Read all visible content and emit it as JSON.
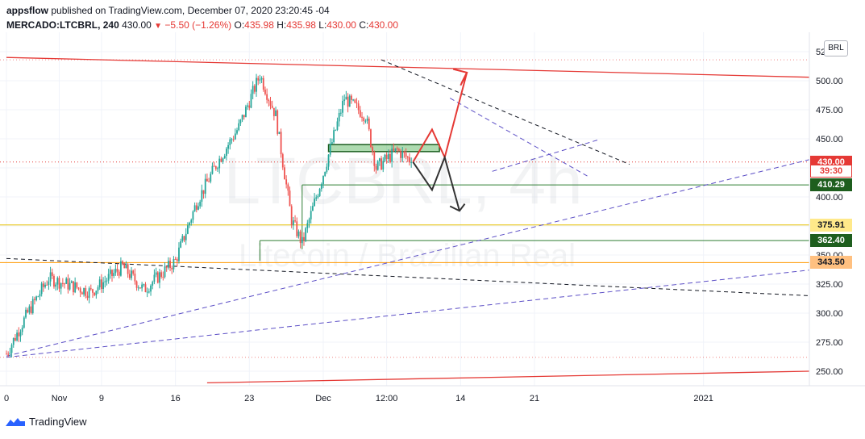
{
  "header": {
    "publisher": "appsflow",
    "published_text": "published on TradingView.com, December 07, 2020 23:20:45 -04",
    "symbol": "MERCADO:LTCBRL, 240",
    "last": "430.00",
    "change": "−5.50 (−1.26%)",
    "o_label": "O:",
    "o": "435.98",
    "h_label": "H:",
    "h": "435.98",
    "l_label": "L:",
    "l": "430.00",
    "c_label": "C:",
    "c": "430.00"
  },
  "watermark": {
    "ticker": "LTCBRL, 4h",
    "name": "Litecoin / Brazilian Real"
  },
  "currency_button": "BRL",
  "footer": {
    "brand": "TradingView"
  },
  "price_labels": [
    {
      "text": "430.00",
      "value": 430.0,
      "bg": "#e53935",
      "fg": "#ffffff"
    },
    {
      "text": "39:30",
      "value": 422.0,
      "bg": "#ffffff",
      "fg": "#e53935",
      "border": "#e53935"
    },
    {
      "text": "410.29",
      "value": 410.29,
      "bg": "#1e5e1e",
      "fg": "#ffffff"
    },
    {
      "text": "375.91",
      "value": 375.91,
      "bg": "#ffe98a",
      "fg": "#131722"
    },
    {
      "text": "362.40",
      "value": 362.4,
      "bg": "#1e5e1e",
      "fg": "#ffffff"
    },
    {
      "text": "343.50",
      "value": 343.5,
      "bg": "#ffc080",
      "fg": "#131722"
    }
  ],
  "colors": {
    "up": "#26a69a",
    "down": "#ef5350",
    "red_line": "#e53935",
    "green_line": "#2e7d32",
    "yellow_line": "#e5c100",
    "orange_line": "#ff9800",
    "purple_line": "#5c4fc6",
    "zone": "#4caf50"
  },
  "chart_data": {
    "type": "candlestick",
    "symbol": "MERCADO:LTCBRL",
    "timeframe": "240",
    "y_ticks": [
      250,
      275,
      300,
      325,
      350,
      375,
      400,
      425,
      450,
      475,
      500,
      525
    ],
    "y_tick_labels": [
      "250.00",
      "275.00",
      "300.00",
      "325.00",
      "350.00",
      "375.00",
      "400.00",
      "425.00",
      "450.00",
      "475.00",
      "500.00",
      "525.00"
    ],
    "ylim": [
      237,
      545
    ],
    "x_tick_labels": [
      "0",
      "Nov",
      "9",
      "16",
      "23",
      "Dec",
      "12:00",
      "14",
      "21",
      "2021"
    ],
    "x_tick_days": [
      0,
      5,
      9,
      16,
      23,
      30,
      36,
      43,
      50,
      66
    ],
    "last_price": 430.0,
    "horizontal_levels": [
      410.29,
      375.91,
      362.4,
      343.5
    ],
    "price_path_key_points": [
      {
        "day": 0,
        "price": 265
      },
      {
        "day": 2,
        "price": 300
      },
      {
        "day": 4,
        "price": 330
      },
      {
        "day": 8,
        "price": 318
      },
      {
        "day": 11,
        "price": 340
      },
      {
        "day": 13,
        "price": 320
      },
      {
        "day": 16,
        "price": 345
      },
      {
        "day": 18,
        "price": 395
      },
      {
        "day": 20,
        "price": 430
      },
      {
        "day": 22,
        "price": 460
      },
      {
        "day": 24,
        "price": 505
      },
      {
        "day": 25.5,
        "price": 470
      },
      {
        "day": 27,
        "price": 380
      },
      {
        "day": 28,
        "price": 360
      },
      {
        "day": 30,
        "price": 420
      },
      {
        "day": 32,
        "price": 485
      },
      {
        "day": 34,
        "price": 470
      },
      {
        "day": 35,
        "price": 425
      },
      {
        "day": 37,
        "price": 440
      },
      {
        "day": 38.5,
        "price": 430
      }
    ]
  }
}
